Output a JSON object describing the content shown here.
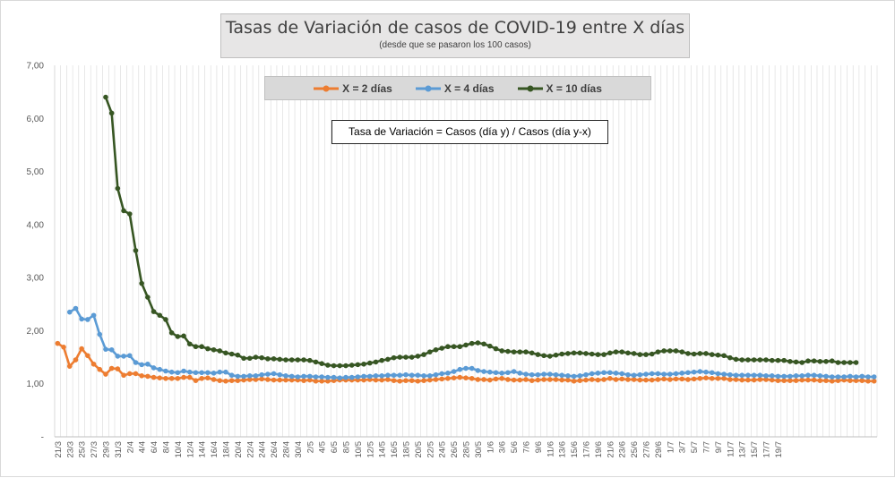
{
  "chart_data": {
    "type": "line",
    "title": "Tasas de Variación de casos de COVID-19 entre X días",
    "subtitle": "(desde que se pasaron los 100 casos)",
    "annotation": "Tasa de Variación = Casos (día y) / Casos (día y-x)",
    "xlabel": "",
    "ylabel": "",
    "ylim": [
      0,
      7
    ],
    "y_ticks": [
      "-",
      "1,00",
      "2,00",
      "3,00",
      "4,00",
      "5,00",
      "6,00",
      "7,00"
    ],
    "grid": "vertical",
    "legend_position": "top-center",
    "x_tick_labels": [
      "21/3",
      "23/3",
      "25/3",
      "27/3",
      "29/3",
      "31/3",
      "2/4",
      "4/4",
      "6/4",
      "8/4",
      "10/4",
      "12/4",
      "14/4",
      "16/4",
      "18/4",
      "20/4",
      "22/4",
      "24/4",
      "26/4",
      "28/4",
      "30/4",
      "2/5",
      "4/5",
      "6/5",
      "8/5",
      "10/5",
      "12/5",
      "14/5",
      "16/5",
      "18/5",
      "20/5",
      "22/5",
      "24/5",
      "26/5",
      "28/5",
      "30/5",
      "1/6",
      "3/6",
      "5/6",
      "7/6",
      "9/6",
      "11/6",
      "13/6",
      "15/6",
      "17/6",
      "19/6",
      "21/6",
      "23/6",
      "25/6",
      "27/6",
      "29/6",
      "1/7",
      "3/7",
      "5/7",
      "7/7",
      "9/7",
      "11/7",
      "13/7",
      "15/7",
      "17/7",
      "19/7"
    ],
    "series": [
      {
        "name": "X = 2 días",
        "color": "#ed7d31",
        "values": [
          1.76,
          1.69,
          1.33,
          1.45,
          1.66,
          1.53,
          1.37,
          1.27,
          1.18,
          1.29,
          1.28,
          1.16,
          1.19,
          1.19,
          1.15,
          1.14,
          1.12,
          1.11,
          1.1,
          1.1,
          1.1,
          1.12,
          1.12,
          1.06,
          1.1,
          1.11,
          1.08,
          1.06,
          1.05,
          1.06,
          1.06,
          1.07,
          1.08,
          1.08,
          1.09,
          1.08,
          1.07,
          1.07,
          1.07,
          1.07,
          1.07,
          1.06,
          1.07,
          1.05,
          1.05,
          1.05,
          1.06,
          1.07,
          1.07,
          1.07,
          1.07,
          1.07,
          1.08,
          1.07,
          1.07,
          1.08,
          1.06,
          1.05,
          1.06,
          1.06,
          1.05,
          1.06,
          1.07,
          1.08,
          1.09,
          1.1,
          1.11,
          1.12,
          1.11,
          1.1,
          1.08,
          1.08,
          1.07,
          1.09,
          1.1,
          1.08,
          1.07,
          1.07,
          1.08,
          1.06,
          1.07,
          1.08,
          1.08,
          1.08,
          1.07,
          1.07,
          1.05,
          1.06,
          1.07,
          1.08,
          1.07,
          1.08,
          1.1,
          1.08,
          1.09,
          1.08,
          1.08,
          1.07,
          1.07,
          1.07,
          1.08,
          1.09,
          1.08,
          1.09,
          1.09,
          1.08,
          1.09,
          1.1,
          1.11,
          1.1,
          1.1,
          1.1,
          1.08,
          1.08,
          1.07,
          1.07,
          1.07,
          1.08,
          1.08,
          1.07,
          1.06,
          1.06,
          1.06,
          1.06,
          1.07,
          1.07,
          1.07,
          1.06,
          1.06,
          1.05,
          1.06,
          1.07,
          1.06,
          1.06,
          1.06,
          1.05,
          1.05
        ]
      },
      {
        "name": "X = 4 días",
        "color": "#5b9bd5",
        "values": [
          null,
          null,
          2.35,
          2.42,
          2.22,
          2.21,
          2.29,
          1.93,
          1.65,
          1.64,
          1.52,
          1.52,
          1.53,
          1.4,
          1.36,
          1.37,
          1.3,
          1.27,
          1.24,
          1.22,
          1.21,
          1.24,
          1.22,
          1.21,
          1.21,
          1.21,
          1.2,
          1.22,
          1.22,
          1.16,
          1.14,
          1.14,
          1.15,
          1.15,
          1.17,
          1.18,
          1.19,
          1.17,
          1.15,
          1.14,
          1.13,
          1.14,
          1.14,
          1.13,
          1.13,
          1.12,
          1.12,
          1.11,
          1.12,
          1.12,
          1.13,
          1.14,
          1.14,
          1.15,
          1.15,
          1.16,
          1.16,
          1.16,
          1.17,
          1.16,
          1.16,
          1.15,
          1.15,
          1.17,
          1.19,
          1.2,
          1.23,
          1.27,
          1.29,
          1.29,
          1.25,
          1.23,
          1.22,
          1.21,
          1.2,
          1.21,
          1.23,
          1.2,
          1.18,
          1.17,
          1.17,
          1.18,
          1.18,
          1.17,
          1.16,
          1.15,
          1.14,
          1.15,
          1.17,
          1.19,
          1.2,
          1.21,
          1.21,
          1.2,
          1.19,
          1.17,
          1.16,
          1.17,
          1.18,
          1.19,
          1.19,
          1.18,
          1.18,
          1.19,
          1.2,
          1.21,
          1.22,
          1.23,
          1.22,
          1.21,
          1.19,
          1.18,
          1.17,
          1.16,
          1.16,
          1.16,
          1.16,
          1.16,
          1.15,
          1.15,
          1.14,
          1.14,
          1.14,
          1.15,
          1.15,
          1.16,
          1.16,
          1.15,
          1.14,
          1.13,
          1.13,
          1.13,
          1.14,
          1.13,
          1.14,
          1.13,
          1.13
        ]
      },
      {
        "name": "X = 10 días",
        "color": "#375623",
        "values": [
          null,
          null,
          null,
          null,
          null,
          null,
          null,
          null,
          6.4,
          6.1,
          4.68,
          4.26,
          4.2,
          3.51,
          2.89,
          2.63,
          2.36,
          2.29,
          2.21,
          1.96,
          1.89,
          1.9,
          1.75,
          1.7,
          1.7,
          1.66,
          1.64,
          1.62,
          1.58,
          1.56,
          1.54,
          1.48,
          1.48,
          1.5,
          1.49,
          1.47,
          1.47,
          1.46,
          1.45,
          1.45,
          1.45,
          1.45,
          1.44,
          1.41,
          1.38,
          1.35,
          1.34,
          1.34,
          1.34,
          1.35,
          1.36,
          1.37,
          1.39,
          1.41,
          1.44,
          1.46,
          1.49,
          1.5,
          1.5,
          1.5,
          1.52,
          1.55,
          1.6,
          1.64,
          1.67,
          1.7,
          1.7,
          1.7,
          1.73,
          1.76,
          1.77,
          1.75,
          1.71,
          1.66,
          1.62,
          1.61,
          1.6,
          1.6,
          1.6,
          1.58,
          1.55,
          1.53,
          1.52,
          1.54,
          1.56,
          1.57,
          1.58,
          1.58,
          1.57,
          1.56,
          1.55,
          1.55,
          1.58,
          1.6,
          1.6,
          1.58,
          1.57,
          1.55,
          1.55,
          1.56,
          1.6,
          1.62,
          1.62,
          1.62,
          1.6,
          1.57,
          1.56,
          1.57,
          1.57,
          1.55,
          1.54,
          1.53,
          1.49,
          1.46,
          1.45,
          1.45,
          1.45,
          1.45,
          1.45,
          1.44,
          1.44,
          1.44,
          1.42,
          1.41,
          1.4,
          1.43,
          1.43,
          1.42,
          1.42,
          1.43,
          1.4,
          1.4,
          1.4,
          1.4
        ]
      }
    ]
  }
}
